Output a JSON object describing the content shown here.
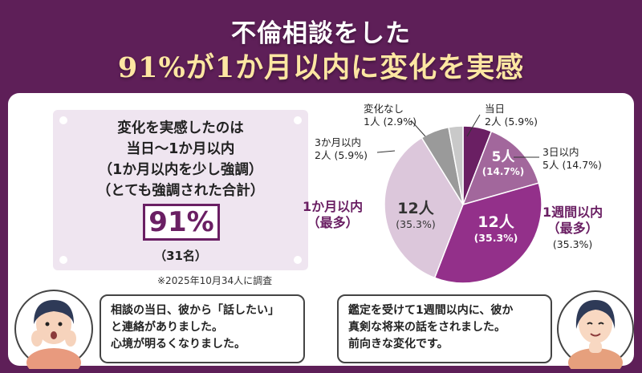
{
  "title": {
    "line1": "不倫相談をした",
    "line2": "91%が1か月以内に変化を実感"
  },
  "summary": {
    "line1": "変化を実感したのは",
    "line2": "当日〜1か月以内",
    "line3": "（1か月以内を少し強調）",
    "line4": "（とても強調された合計）",
    "percent": "91%",
    "count": "（31名）"
  },
  "footnote": "※2025年10月34人に調査",
  "chart_data": {
    "type": "pie",
    "title": "",
    "total": 34,
    "slices": [
      {
        "label": "当日",
        "count": 2,
        "count_text": "2人",
        "percent": 5.9,
        "percent_text": "(5.9%)",
        "color": "#6a1f63"
      },
      {
        "label": "3日以内",
        "count": 5,
        "count_text": "5人",
        "percent": 14.7,
        "percent_text": "(14.7%)",
        "color": "#a2679c"
      },
      {
        "label": "1週間以内",
        "count": 12,
        "count_text": "12人",
        "percent": 35.3,
        "percent_text": "(35.3%)",
        "color": "#93308a"
      },
      {
        "label": "1か月以内",
        "count": 12,
        "count_text": "12人",
        "percent": 35.3,
        "percent_text": "(35.3%)",
        "color": "#dcc7db"
      },
      {
        "label": "3か月以内",
        "count": 2,
        "count_text": "2人",
        "percent": 5.9,
        "percent_text": "(5.9%)",
        "color": "#9a9a9a"
      },
      {
        "label": "変化なし",
        "count": 1,
        "count_text": "1人",
        "percent": 2.9,
        "percent_text": "(2.9%)",
        "color": "#c9c9c9"
      }
    ],
    "callouts": {
      "most": "（最多）"
    }
  },
  "testimonials": {
    "left": {
      "line1": "相談の当日、彼から「話したい」",
      "line2": "と連絡がありました。",
      "line3": "心境が明るくなりました。"
    },
    "right": {
      "line1": "鑑定を受けて1週間以内に、彼か",
      "line2": "真剣な将来の話をされました。",
      "line3": "前向きな変化です。"
    }
  }
}
